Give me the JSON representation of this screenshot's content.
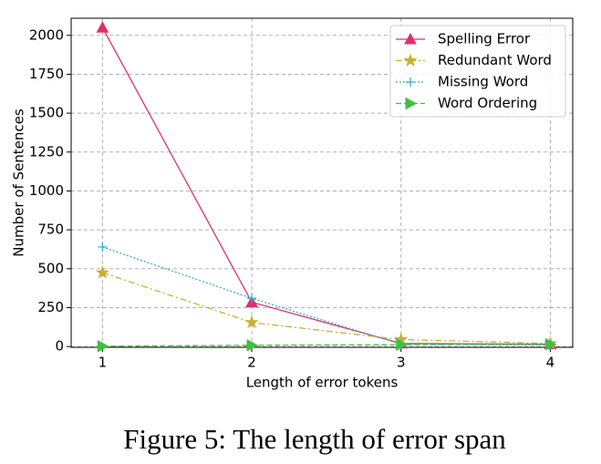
{
  "chart_data": {
    "type": "line",
    "x": [
      1,
      2,
      3,
      4
    ],
    "xlabel": "Length of error tokens",
    "ylabel": "Number of Sentences",
    "xlim": [
      0.79,
      4.15
    ],
    "ylim": [
      -5,
      2110
    ],
    "xticks": [
      1,
      2,
      3,
      4
    ],
    "yticks": [
      0,
      250,
      500,
      750,
      1000,
      1250,
      1500,
      1750,
      2000
    ],
    "grid": true,
    "legend": "upper right",
    "series": [
      {
        "name": "Spelling Error",
        "color": "#e0306a",
        "linestyle": "solid",
        "marker": "triangle-up",
        "values": [
          2050,
          285,
          20,
          15
        ]
      },
      {
        "name": "Redundant Word",
        "color": "#c8b030",
        "linestyle": "dashdot",
        "marker": "star",
        "values": [
          475,
          155,
          45,
          20
        ]
      },
      {
        "name": "Missing Word",
        "color": "#30b0d0",
        "linestyle": "dotted",
        "marker": "plus",
        "values": [
          640,
          310,
          15,
          10
        ]
      },
      {
        "name": "Word Ordering",
        "color": "#40c040",
        "linestyle": "dashed",
        "marker": "triangle-right",
        "values": [
          2,
          8,
          12,
          15
        ]
      }
    ]
  },
  "caption": "Figure 5: The length of error span"
}
